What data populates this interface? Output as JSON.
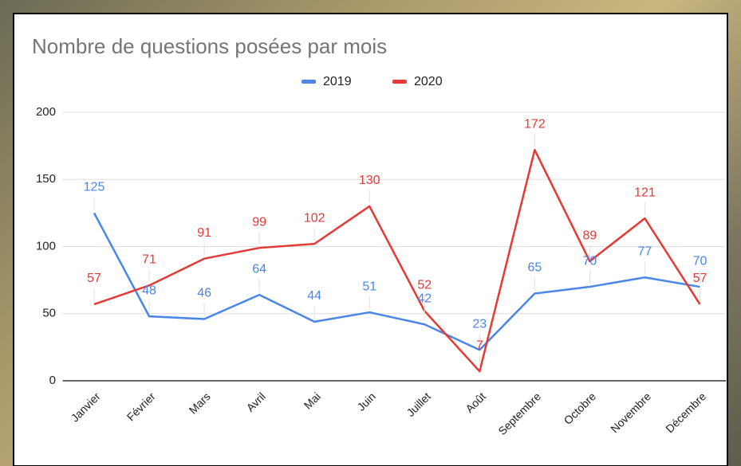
{
  "chart_data": {
    "type": "line",
    "title": "Nombre de questions posées par mois",
    "categories": [
      "Janvier",
      "Février",
      "Mars",
      "Avril",
      "Mai",
      "Juin",
      "Juillet",
      "Août",
      "Septembre",
      "Octobre",
      "Novembre",
      "Décembre"
    ],
    "series": [
      {
        "name": "2019",
        "color": "#4a86e8",
        "values": [
          125,
          48,
          46,
          64,
          44,
          51,
          42,
          23,
          65,
          70,
          77,
          70
        ]
      },
      {
        "name": "2020",
        "color": "#e53935",
        "values": [
          57,
          71,
          91,
          99,
          102,
          130,
          52,
          7,
          172,
          89,
          121,
          57
        ]
      }
    ],
    "ylim": [
      0,
      200
    ],
    "yticks": [
      0,
      50,
      100,
      150,
      200
    ],
    "grid": true,
    "legend": "top"
  }
}
